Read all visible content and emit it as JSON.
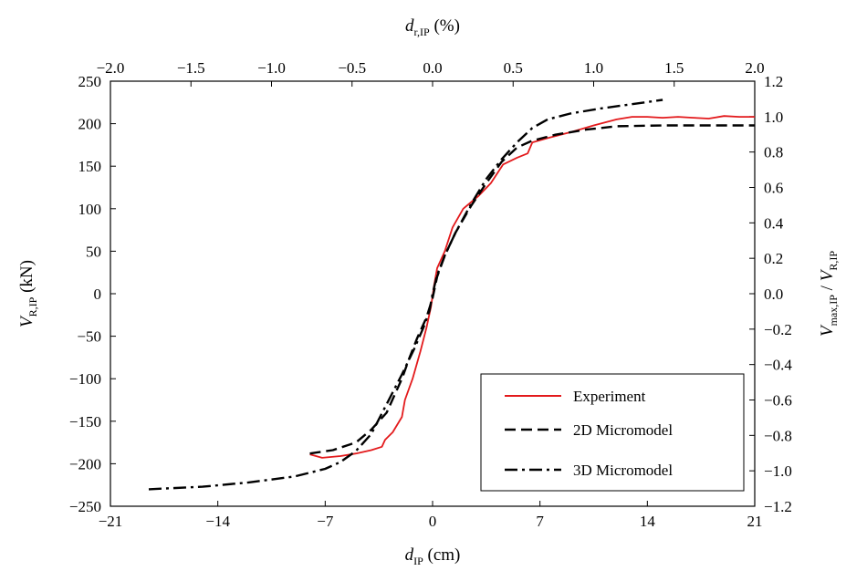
{
  "chart_data": {
    "type": "line",
    "axes": {
      "bottom": {
        "label_main": "d",
        "label_sub": "IP",
        "label_unit": " (cm)",
        "range": [
          -21,
          21
        ],
        "ticks": [
          -21,
          -14,
          -7,
          0,
          7,
          14,
          21
        ],
        "tick_labels": [
          "−21",
          "−14",
          "−7",
          "0",
          "7",
          "14",
          "21"
        ]
      },
      "top": {
        "label_main": "d",
        "label_sub": "r,IP",
        "label_unit": " (%)",
        "range": [
          -2.0,
          2.0
        ],
        "ticks": [
          -2.0,
          -1.5,
          -1.0,
          -0.5,
          0.0,
          0.5,
          1.0,
          1.5,
          2.0
        ],
        "tick_labels": [
          "−2.0",
          "−1.5",
          "−1.0",
          "−0.5",
          "0.0",
          "0.5",
          "1.0",
          "1.5",
          "2.0"
        ]
      },
      "left": {
        "label_main": "V",
        "label_sub": "R,IP",
        "label_unit": " (kN)",
        "range": [
          -250,
          250
        ],
        "ticks": [
          -250,
          -200,
          -150,
          -100,
          -50,
          0,
          50,
          100,
          150,
          200,
          250
        ],
        "tick_labels": [
          "−250",
          "−200",
          "−150",
          "−100",
          "−50",
          "0",
          "50",
          "100",
          "150",
          "200",
          "250"
        ]
      },
      "right": {
        "label_a_main": "V",
        "label_a_sub": "max,IP",
        "label_sep": " / ",
        "label_b_main": "V",
        "label_b_sub": "R,IP",
        "range": [
          -1.2,
          1.2
        ],
        "ticks": [
          -1.2,
          -1.0,
          -0.8,
          -0.6,
          -0.4,
          -0.2,
          0.0,
          0.2,
          0.4,
          0.6,
          0.8,
          1.0,
          1.2
        ],
        "tick_labels": [
          "−1.2",
          "−1.0",
          "−0.8",
          "−0.6",
          "−0.4",
          "−0.2",
          "0.0",
          "0.2",
          "0.4",
          "0.6",
          "0.8",
          "1.0",
          "1.2"
        ]
      }
    },
    "grid": false,
    "legend_position": "bottom-right",
    "series": [
      {
        "name": "Experiment",
        "color": "#e31a1c",
        "dash": "solid",
        "points": [
          [
            -8.0,
            -189
          ],
          [
            -7.2,
            -193
          ],
          [
            -6.0,
            -191
          ],
          [
            -5.0,
            -188
          ],
          [
            -4.0,
            -184
          ],
          [
            -3.3,
            -180
          ],
          [
            -3.1,
            -172
          ],
          [
            -2.6,
            -163
          ],
          [
            -2.0,
            -145
          ],
          [
            -1.8,
            -125
          ],
          [
            -1.3,
            -100
          ],
          [
            -0.8,
            -68
          ],
          [
            -0.4,
            -40
          ],
          [
            -0.1,
            -15
          ],
          [
            0.1,
            10
          ],
          [
            0.3,
            30
          ],
          [
            0.8,
            50
          ],
          [
            1.3,
            78
          ],
          [
            2.0,
            100
          ],
          [
            3.0,
            115
          ],
          [
            3.8,
            130
          ],
          [
            4.6,
            152
          ],
          [
            5.5,
            160
          ],
          [
            6.2,
            165
          ],
          [
            6.5,
            178
          ],
          [
            7.5,
            183
          ],
          [
            9.0,
            190
          ],
          [
            10.5,
            198
          ],
          [
            12.0,
            205
          ],
          [
            13.0,
            208
          ],
          [
            14.0,
            208
          ],
          [
            15.0,
            207
          ],
          [
            16.0,
            208
          ],
          [
            17.0,
            207
          ],
          [
            18.0,
            206
          ],
          [
            19.0,
            209
          ],
          [
            20.0,
            208
          ],
          [
            21.0,
            208
          ]
        ]
      },
      {
        "name": "2D Micromodel",
        "color": "#000000",
        "dash": "long-dash",
        "points": [
          [
            -8.0,
            -188
          ],
          [
            -6.5,
            -184
          ],
          [
            -5.0,
            -175
          ],
          [
            -4.0,
            -160
          ],
          [
            -3.0,
            -140
          ],
          [
            -2.0,
            -100
          ],
          [
            -1.5,
            -75
          ],
          [
            -1.0,
            -52
          ],
          [
            -0.4,
            -28
          ],
          [
            0.0,
            -5
          ],
          [
            0.3,
            20
          ],
          [
            0.8,
            45
          ],
          [
            1.5,
            72
          ],
          [
            2.5,
            103
          ],
          [
            3.5,
            130
          ],
          [
            4.5,
            155
          ],
          [
            5.5,
            172
          ],
          [
            6.5,
            180
          ],
          [
            8.0,
            187
          ],
          [
            10.0,
            193
          ],
          [
            12.0,
            197
          ],
          [
            15.0,
            198
          ],
          [
            18.0,
            198
          ],
          [
            21.0,
            198
          ]
        ]
      },
      {
        "name": "3D Micromodel",
        "color": "#000000",
        "dash": "dash-dot",
        "points": [
          [
            -18.5,
            -230
          ],
          [
            -15.0,
            -227
          ],
          [
            -12.0,
            -222
          ],
          [
            -9.0,
            -215
          ],
          [
            -7.0,
            -206
          ],
          [
            -6.0,
            -198
          ],
          [
            -5.0,
            -185
          ],
          [
            -4.0,
            -165
          ],
          [
            -3.0,
            -130
          ],
          [
            -2.0,
            -95
          ],
          [
            -1.2,
            -65
          ],
          [
            -0.6,
            -40
          ],
          [
            -0.2,
            -20
          ],
          [
            0.0,
            0
          ],
          [
            0.3,
            22
          ],
          [
            0.8,
            45
          ],
          [
            1.5,
            72
          ],
          [
            2.5,
            105
          ],
          [
            3.5,
            135
          ],
          [
            4.5,
            158
          ],
          [
            5.5,
            178
          ],
          [
            6.5,
            195
          ],
          [
            7.5,
            205
          ],
          [
            9.0,
            212
          ],
          [
            11.0,
            218
          ],
          [
            13.0,
            223
          ],
          [
            15.0,
            228
          ]
        ]
      }
    ]
  }
}
